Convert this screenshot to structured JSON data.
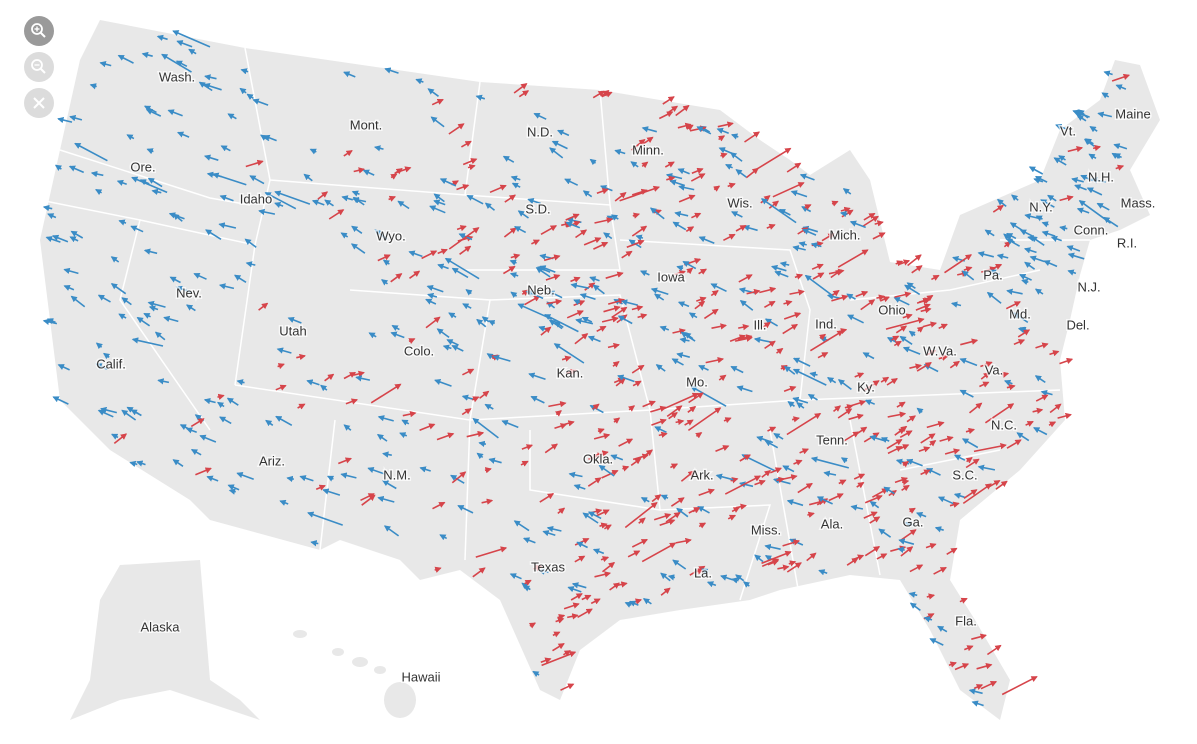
{
  "labels": [
    "Wash.",
    "Mont.",
    "N.D.",
    "Minn.",
    "Maine",
    "Vt.",
    "Ore.",
    "N.H.",
    "Idaho",
    "S.D.",
    "Wis.",
    "Mass.",
    "N.Y.",
    "Wyo.",
    "Mich.",
    "Conn.",
    "R.I.",
    "Iowa",
    "Pa.",
    "Nev.",
    "Neb.",
    "N.J.",
    "Ohio",
    "Md.",
    "Ill.",
    "Ind.",
    "Del.",
    "Utah",
    "Colo.",
    "W.Va.",
    "Calif.",
    "Kan.",
    "Va.",
    "Mo.",
    "Ky.",
    "N.C.",
    "Tenn.",
    "Okla.",
    "Ariz.",
    "N.M.",
    "S.C.",
    "Ark.",
    "Ala.",
    "Ga.",
    "Miss.",
    "Texas",
    "La.",
    "Fla.",
    "Alaska",
    "Hawaii"
  ]
}
